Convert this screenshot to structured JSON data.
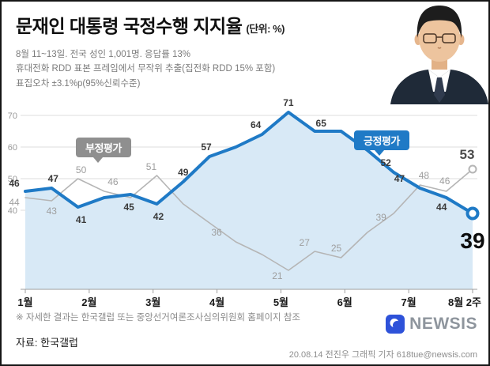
{
  "header": {
    "title_prefix": "문재인 대통령",
    "title_bold": "국정수행 지지율",
    "title_unit": "(단위: %)",
    "subtitle_lines": [
      "8월 11~13일. 전국 성인 1,001명. 응답률 13%",
      "휴대전화 RDD 표본 프레임에서 무작위 추출(집전화 RDD 15% 포함)",
      "표집오차 ±3.1%p(95%신뢰수준)"
    ]
  },
  "legend": {
    "negative": "부정평가",
    "positive": "긍정평가"
  },
  "chart_data": {
    "type": "line",
    "title": "문재인 대통령 국정수행 지지율",
    "unit": "%",
    "x_tick_labels": [
      "1월",
      "2월",
      "3월",
      "4월",
      "5월",
      "6월",
      "7월",
      "8월 2주"
    ],
    "y_ticks": [
      40,
      50,
      60,
      70
    ],
    "ylim": [
      15,
      75
    ],
    "grid": "horizontal",
    "legend_position": "inline-badges",
    "area_color": "#d8e9f6",
    "series": [
      {
        "key": "positive",
        "name": "긍정평가",
        "color": "#1f7ac6",
        "stroke_width": 4,
        "label_color": "#3a3a3a",
        "label_weight": "bold",
        "fill_area": true,
        "values": [
          46,
          47,
          41,
          44,
          45,
          42,
          49,
          57,
          60,
          64,
          71,
          65,
          65,
          59,
          52,
          47,
          44,
          39
        ],
        "labels": [
          {
            "i": 0,
            "dx": -14,
            "dy": -6
          },
          {
            "i": 1,
            "dx": 2,
            "dy": -8
          },
          {
            "i": 2,
            "dx": 4,
            "dy": 20
          },
          {
            "i": 4,
            "dx": -2,
            "dy": 20
          },
          {
            "i": 5,
            "dx": 2,
            "dy": 20
          },
          {
            "i": 6,
            "dx": 0,
            "dy": -8
          },
          {
            "i": 7,
            "dx": -4,
            "dy": -8
          },
          {
            "i": 9,
            "dx": -8,
            "dy": -8
          },
          {
            "i": 10,
            "dx": 0,
            "dy": -8
          },
          {
            "i": 11,
            "dx": 8,
            "dy": -6
          },
          {
            "i": 14,
            "dx": -10,
            "dy": -8
          },
          {
            "i": 15,
            "dx": -26,
            "dy": -8
          },
          {
            "i": 16,
            "dx": -6,
            "dy": 16
          }
        ],
        "end_marker": {
          "r": 6.5,
          "stroke_width": 4
        },
        "end_label": {
          "dx": 0,
          "dy": 44,
          "size": 28,
          "color": "#0d0d0d"
        }
      },
      {
        "key": "negative",
        "name": "부정평가",
        "color": "#b5b5b5",
        "stroke_width": 1.6,
        "label_color": "#9e9e9e",
        "label_weight": "normal",
        "fill_area": false,
        "values": [
          44,
          43,
          50,
          46,
          44,
          51,
          42,
          36,
          30,
          26,
          21,
          27,
          25,
          33,
          39,
          48,
          46,
          53
        ],
        "labels": [
          {
            "i": 0,
            "dx": -14,
            "dy": 10
          },
          {
            "i": 1,
            "dx": 0,
            "dy": 17
          },
          {
            "i": 2,
            "dx": 4,
            "dy": -7
          },
          {
            "i": 3,
            "dx": 11,
            "dy": -8
          },
          {
            "i": 5,
            "dx": -7,
            "dy": -7
          },
          {
            "i": 7,
            "dx": 9,
            "dy": 16
          },
          {
            "i": 10,
            "dx": -14,
            "dy": 11
          },
          {
            "i": 11,
            "dx": -13,
            "dy": -7
          },
          {
            "i": 12,
            "dx": -6,
            "dy": -8
          },
          {
            "i": 14,
            "dx": -16,
            "dy": 9
          },
          {
            "i": 15,
            "dx": 5,
            "dy": -8
          },
          {
            "i": 16,
            "dx": -2,
            "dy": -9
          }
        ],
        "end_marker": {
          "r": 4.5,
          "stroke_width": 2
        },
        "end_label": {
          "dx": -7,
          "dy": -13,
          "size": 17,
          "color": "#4a4a4a"
        }
      }
    ]
  },
  "footer": {
    "note": "※ 자세한 결과는 한국갤럽 또는 중앙선거여론조사심의위원회 홈페이지 참조",
    "source": "자료: 한국갤럽",
    "credit": "20.08.14 전진우 그래픽 기자 618tue@newsis.com"
  },
  "branding": {
    "logo_text": "NEWSIS",
    "logo_color": "#2e52d9",
    "text_color": "#8e959d"
  }
}
